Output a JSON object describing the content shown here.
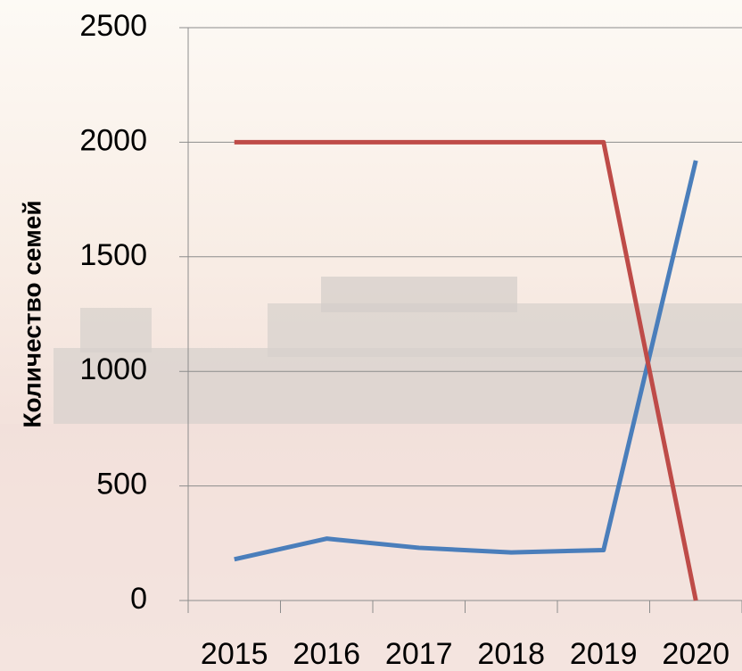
{
  "chart_data": {
    "type": "line",
    "y_label": "Количество семей",
    "categories": [
      "2015",
      "2016",
      "2017",
      "2018",
      "2019",
      "2020"
    ],
    "series": [
      {
        "color": "#4a7ebb",
        "values": [
          180,
          270,
          230,
          210,
          220,
          1920
        ]
      },
      {
        "color": "#be4b48",
        "values": [
          2000,
          2000,
          2000,
          2000,
          2000,
          0
        ]
      }
    ],
    "ylim": [
      0,
      2500
    ],
    "yticks": [
      0,
      500,
      1000,
      1500,
      2000,
      2500
    ],
    "grid": true
  }
}
